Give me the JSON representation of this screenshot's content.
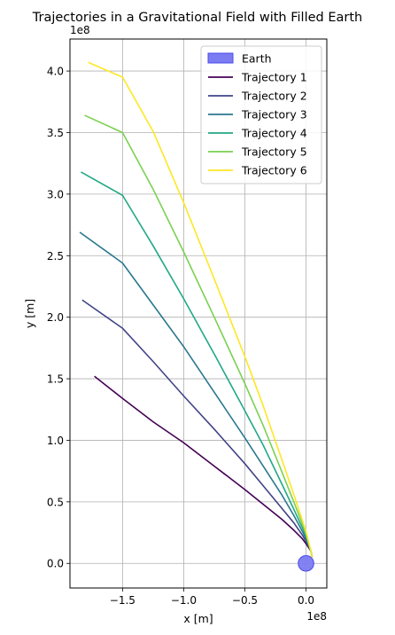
{
  "chart_data": {
    "type": "line",
    "title": "Trajectories in a Gravitational Field with Filled Earth",
    "xlabel": "x [m]",
    "ylabel": "y [m]",
    "x_multiplier_label": "1e8",
    "y_multiplier_label": "1e8",
    "scale": 100000000,
    "xlim": [
      -1.93,
      0.17
    ],
    "ylim": [
      -0.2,
      4.26
    ],
    "x_ticks": [
      -1.5,
      -1.0,
      -0.5,
      0.0
    ],
    "x_tick_labels": [
      "−1.5",
      "−1.0",
      "−0.5",
      "0.0"
    ],
    "y_ticks": [
      0.0,
      0.5,
      1.0,
      1.5,
      2.0,
      2.5,
      3.0,
      3.5,
      4.0
    ],
    "y_tick_labels": [
      "0.0",
      "0.5",
      "1.0",
      "1.5",
      "2.0",
      "2.5",
      "3.0",
      "3.5",
      "4.0"
    ],
    "grid": true,
    "legend_position": "top-right",
    "earth": {
      "name": "Earth",
      "center": [
        0.0,
        0.0
      ],
      "radius": 0.0637,
      "color": "#7b7bf2",
      "edge_color": "#4b4bee"
    },
    "series": [
      {
        "name": "Trajectory 1",
        "color": "#440154",
        "x": [
          0.05,
          0.04,
          0.02,
          0.0,
          -0.03,
          -0.1,
          -0.2,
          -0.35,
          -0.5,
          -0.75,
          -1.0,
          -1.25,
          -1.5,
          -1.73
        ],
        "y": [
          0.05,
          0.1,
          0.13,
          0.16,
          0.2,
          0.27,
          0.36,
          0.48,
          0.6,
          0.79,
          0.98,
          1.15,
          1.34,
          1.52
        ]
      },
      {
        "name": "Trajectory 2",
        "color": "#414487",
        "x": [
          0.05,
          0.04,
          0.02,
          0.0,
          -0.03,
          -0.1,
          -0.2,
          -0.35,
          -0.5,
          -0.75,
          -1.0,
          -1.25,
          -1.5,
          -1.83
        ],
        "y": [
          0.05,
          0.1,
          0.14,
          0.18,
          0.23,
          0.33,
          0.45,
          0.63,
          0.81,
          1.09,
          1.36,
          1.64,
          1.91,
          2.14
        ]
      },
      {
        "name": "Trajectory 3",
        "color": "#2a788e",
        "x": [
          0.05,
          0.04,
          0.02,
          0.0,
          -0.03,
          -0.1,
          -0.2,
          -0.35,
          -0.5,
          -0.75,
          -1.0,
          -1.25,
          -1.5,
          -1.85
        ],
        "y": [
          0.05,
          0.1,
          0.15,
          0.2,
          0.26,
          0.39,
          0.56,
          0.79,
          1.02,
          1.39,
          1.76,
          2.1,
          2.44,
          2.69
        ]
      },
      {
        "name": "Trajectory 4",
        "color": "#22a884",
        "x": [
          0.05,
          0.04,
          0.02,
          0.0,
          -0.03,
          -0.1,
          -0.2,
          -0.35,
          -0.5,
          -0.75,
          -1.0,
          -1.25,
          -1.5,
          -1.84
        ],
        "y": [
          0.05,
          0.1,
          0.16,
          0.22,
          0.29,
          0.44,
          0.65,
          0.96,
          1.24,
          1.7,
          2.15,
          2.58,
          2.99,
          3.18
        ]
      },
      {
        "name": "Trajectory 5",
        "color": "#7ad151",
        "x": [
          0.05,
          0.04,
          0.02,
          0.0,
          -0.03,
          -0.1,
          -0.2,
          -0.35,
          -0.5,
          -0.75,
          -1.0,
          -1.25,
          -1.5,
          -1.81
        ],
        "y": [
          0.05,
          0.1,
          0.17,
          0.24,
          0.32,
          0.5,
          0.75,
          1.12,
          1.46,
          2.0,
          2.53,
          3.04,
          3.5,
          3.64
        ]
      },
      {
        "name": "Trajectory 6",
        "color": "#fde725",
        "x": [
          0.05,
          0.04,
          0.02,
          0.0,
          -0.03,
          -0.1,
          -0.2,
          -0.35,
          -0.5,
          -0.75,
          -1.0,
          -1.25,
          -1.5,
          -1.78
        ],
        "y": [
          0.05,
          0.1,
          0.18,
          0.26,
          0.35,
          0.56,
          0.85,
          1.28,
          1.68,
          2.31,
          2.93,
          3.51,
          3.95,
          4.07
        ]
      }
    ]
  }
}
